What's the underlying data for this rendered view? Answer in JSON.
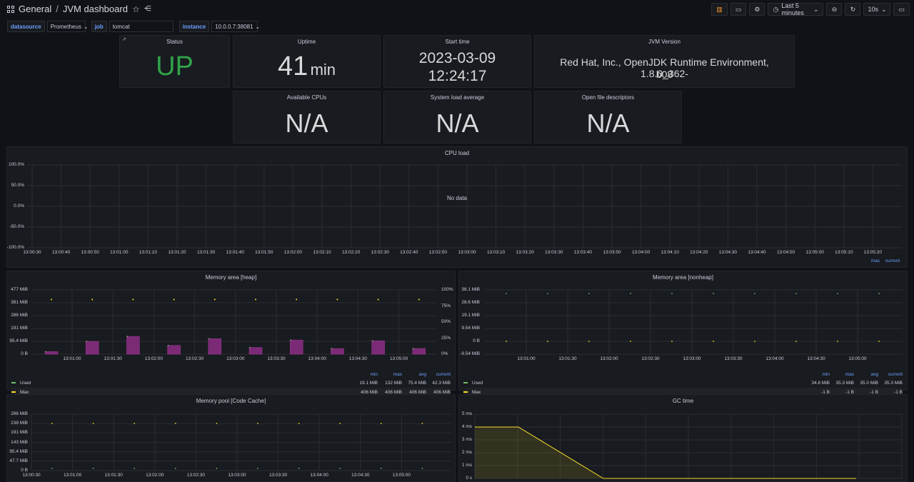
{
  "header": {
    "folder": "General",
    "separator": "/",
    "dashboard": "JVM dashboard",
    "time_range": "Last 5 minutes",
    "refresh": "10s"
  },
  "variables": [
    {
      "label": "datasource",
      "value": "Prometheus"
    },
    {
      "label": "job",
      "value": "tomcat"
    },
    {
      "label": "instance",
      "value": "10.0.0.7:38081"
    }
  ],
  "stats": {
    "status": {
      "title": "Status",
      "value": "UP"
    },
    "uptime": {
      "title": "Uptime",
      "value": "41",
      "unit": "min"
    },
    "start_time": {
      "title": "Start time",
      "line1": "2023-03-09",
      "line2": "12:24:17"
    },
    "jvm_version": {
      "title": "JVM Version",
      "line1": "Red Hat, Inc., OpenJDK Runtime Environment, 1.8.0_362-",
      "line2": "b08"
    },
    "cpus": {
      "title": "Available CPUs",
      "value": "N/A"
    },
    "load": {
      "title": "System load average",
      "value": "N/A"
    },
    "fds": {
      "title": "Open file descriptors",
      "value": "N/A"
    }
  },
  "cpu_load": {
    "title": "CPU load",
    "no_data": "No data",
    "y_ticks": [
      "100.0%",
      "50.0%",
      "0.0%",
      "-50.0%",
      "-100.0%"
    ],
    "x_ticks": [
      "13:00:30",
      "13:00:40",
      "13:00:50",
      "13:01:00",
      "13:01:10",
      "13:01:20",
      "13:01:30",
      "13:01:40",
      "13:01:50",
      "13:02:00",
      "13:02:10",
      "13:02:20",
      "13:02:30",
      "13:02:40",
      "13:02:50",
      "13:03:00",
      "13:03:10",
      "13:03:20",
      "13:03:30",
      "13:03:40",
      "13:03:50",
      "13:04:00",
      "13:04:10",
      "13:04:20",
      "13:04:30",
      "13:04:40",
      "13:04:50",
      "13:05:00",
      "13:05:10",
      "13:05:20"
    ],
    "legend_max": "max",
    "legend_current": "current"
  },
  "heap": {
    "title": "Memory area [heap]",
    "y_ticks": [
      "477 MiB",
      "381 MiB",
      "286 MiB",
      "191 MiB",
      "95.4 MiB",
      "0 B"
    ],
    "y2_ticks": [
      "100%",
      "75%",
      "50%",
      "25%",
      "0%"
    ],
    "x_ticks": [
      "13:01:00",
      "13:01:30",
      "13:02:00",
      "13:02:30",
      "13:03:00",
      "13:03:30",
      "13:04:00",
      "13:04:30",
      "13:05:00"
    ],
    "legend_head": [
      "min",
      "max",
      "avg",
      "current"
    ],
    "legend": [
      {
        "name": "Used",
        "color": "#73bf69",
        "vals": [
          "19.1 MiB",
          "132 MiB",
          "75.4 MiB",
          "42.3 MiB"
        ]
      },
      {
        "name": "Max",
        "color": "#fade2a",
        "vals": [
          "406 MiB",
          "406 MiB",
          "406 MiB",
          "406 MiB"
        ]
      }
    ]
  },
  "nonheap": {
    "title": "Memory area [nonheap]",
    "y_ticks": [
      "38.1 MiB",
      "28.6 MiB",
      "19.1 MiB",
      "9.54 MiB",
      "0 B",
      "-9.54 MiB"
    ],
    "x_ticks": [
      "13:01:00",
      "13:01:30",
      "13:02:00",
      "13:02:30",
      "13:03:00",
      "13:03:30",
      "13:04:00",
      "13:04:30",
      "13:05:00"
    ],
    "legend_head": [
      "min",
      "max",
      "avg",
      "current"
    ],
    "legend": [
      {
        "name": "Used",
        "color": "#73bf69",
        "vals": [
          "34.8 MiB",
          "35.3 MiB",
          "35.0 MiB",
          "35.3 MiB"
        ]
      },
      {
        "name": "Max",
        "color": "#fade2a",
        "vals": [
          "-1 B",
          "-1 B",
          "-1 B",
          "-1 B"
        ]
      }
    ]
  },
  "codecache": {
    "title": "Memory pool [Code Cache]",
    "y_ticks": [
      "286 MiB",
      "238 MiB",
      "191 MiB",
      "143 MiB",
      "95.4 MiB",
      "47.7 MiB",
      "0 B"
    ],
    "x_ticks": [
      "13:00:30",
      "13:01:00",
      "13:01:30",
      "13:02:00",
      "13:02:30",
      "13:03:00",
      "13:03:30",
      "13:04:00",
      "13:04:30",
      "13:05:00"
    ]
  },
  "gc": {
    "title": "GC time",
    "y_ticks": [
      "5 ms",
      "4 ms",
      "3 ms",
      "2 ms",
      "1 ms",
      "0 s"
    ]
  },
  "chart_data": [
    {
      "type": "bar",
      "title": "Memory area [heap]",
      "x": [
        "13:00:45",
        "13:01:15",
        "13:01:45",
        "13:02:15",
        "13:02:45",
        "13:03:15",
        "13:03:45",
        "13:04:15",
        "13:04:45",
        "13:05:15"
      ],
      "series": [
        {
          "name": "Used",
          "values": [
            19.1,
            95,
            132,
            65,
            115,
            50,
            105,
            42,
            100,
            42.3
          ]
        },
        {
          "name": "Max",
          "values": [
            406,
            406,
            406,
            406,
            406,
            406,
            406,
            406,
            406,
            406
          ]
        }
      ],
      "ylim": [
        0,
        477
      ]
    },
    {
      "type": "area",
      "title": "GC time",
      "x": [
        0,
        1,
        3,
        10
      ],
      "values": [
        4,
        4,
        0,
        0
      ],
      "ylim": [
        0,
        5
      ]
    }
  ]
}
